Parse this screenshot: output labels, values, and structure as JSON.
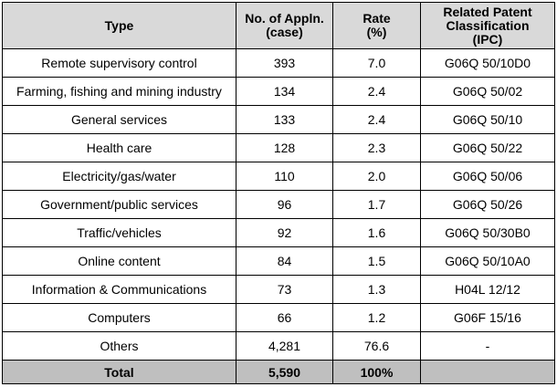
{
  "columns": [
    "Type",
    "No. of Appln.\n(case)",
    "Rate\n(%)",
    "Related Patent\nClassification\n(IPC)"
  ],
  "rows": [
    {
      "type": "Remote supervisory control",
      "count": "393",
      "rate": "7.0",
      "ipc": "G06Q 50/10D0"
    },
    {
      "type": "Farming, fishing and mining industry",
      "count": "134",
      "rate": "2.4",
      "ipc": "G06Q 50/02"
    },
    {
      "type": "General services",
      "count": "133",
      "rate": "2.4",
      "ipc": "G06Q 50/10"
    },
    {
      "type": "Health care",
      "count": "128",
      "rate": "2.3",
      "ipc": "G06Q 50/22"
    },
    {
      "type": "Electricity/gas/water",
      "count": "110",
      "rate": "2.0",
      "ipc": "G06Q 50/06"
    },
    {
      "type": "Government/public services",
      "count": "96",
      "rate": "1.7",
      "ipc": "G06Q 50/26"
    },
    {
      "type": "Traffic/vehicles",
      "count": "92",
      "rate": "1.6",
      "ipc": "G06Q 50/30B0"
    },
    {
      "type": "Online content",
      "count": "84",
      "rate": "1.5",
      "ipc": "G06Q 50/10A0"
    },
    {
      "type": "Information & Communications",
      "count": "73",
      "rate": "1.3",
      "ipc": "H04L 12/12"
    },
    {
      "type": "Computers",
      "count": "66",
      "rate": "1.2",
      "ipc": "G06F 15/16"
    },
    {
      "type": "Others",
      "count": "4,281",
      "rate": "76.6",
      "ipc": "-"
    }
  ],
  "total": {
    "label": "Total",
    "count": "5,590",
    "rate": "100%",
    "ipc": ""
  },
  "colors": {
    "header_bg": "#d9d9d9",
    "total_bg": "#bfbfbf",
    "border": "#000000"
  }
}
